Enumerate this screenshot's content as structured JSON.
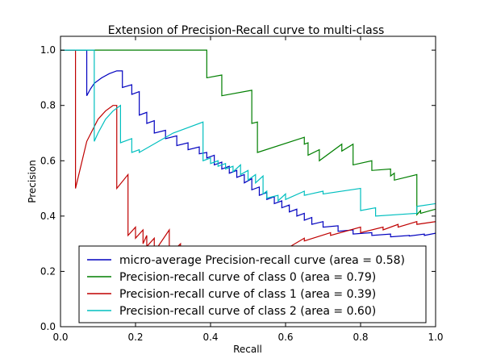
{
  "chart_data": {
    "type": "line",
    "title": "Extension of Precision-Recall curve to multi-class",
    "xlabel": "Recall",
    "ylabel": "Precision",
    "xlim": [
      0.0,
      1.0
    ],
    "ylim": [
      0.0,
      1.05
    ],
    "xticks": [
      "0.0",
      "0.2",
      "0.4",
      "0.6",
      "0.8",
      "1.0"
    ],
    "yticks": [
      "0.0",
      "0.2",
      "0.4",
      "0.6",
      "0.8",
      "1.0"
    ],
    "grid": false,
    "legend_position": "lower-right",
    "series": [
      {
        "name": "micro-average Precision-recall curve (area = 0.58)",
        "color": "#0000bf",
        "x": [
          0.0,
          0.07,
          0.07,
          0.08,
          0.09,
          0.11,
          0.13,
          0.15,
          0.165,
          0.165,
          0.19,
          0.19,
          0.21,
          0.21,
          0.23,
          0.23,
          0.25,
          0.25,
          0.28,
          0.28,
          0.31,
          0.31,
          0.34,
          0.34,
          0.37,
          0.37,
          0.39,
          0.39,
          0.41,
          0.41,
          0.43,
          0.43,
          0.45,
          0.45,
          0.47,
          0.47,
          0.49,
          0.49,
          0.51,
          0.51,
          0.53,
          0.53,
          0.55,
          0.55,
          0.57,
          0.57,
          0.59,
          0.59,
          0.61,
          0.61,
          0.63,
          0.63,
          0.65,
          0.65,
          0.67,
          0.67,
          0.7,
          0.7,
          0.74,
          0.74,
          0.78,
          0.78,
          0.83,
          0.83,
          0.88,
          0.88,
          0.93,
          0.93,
          0.97,
          0.97,
          1.0
        ],
        "y": [
          1.0,
          1.0,
          0.835,
          0.86,
          0.88,
          0.9,
          0.915,
          0.925,
          0.925,
          0.865,
          0.875,
          0.84,
          0.85,
          0.765,
          0.775,
          0.735,
          0.745,
          0.7,
          0.71,
          0.68,
          0.69,
          0.655,
          0.665,
          0.64,
          0.65,
          0.625,
          0.63,
          0.61,
          0.62,
          0.585,
          0.595,
          0.57,
          0.58,
          0.555,
          0.565,
          0.54,
          0.55,
          0.52,
          0.535,
          0.495,
          0.505,
          0.475,
          0.485,
          0.46,
          0.47,
          0.445,
          0.455,
          0.43,
          0.44,
          0.415,
          0.425,
          0.4,
          0.41,
          0.385,
          0.395,
          0.37,
          0.38,
          0.36,
          0.365,
          0.345,
          0.35,
          0.335,
          0.34,
          0.33,
          0.335,
          0.325,
          0.33,
          0.328,
          0.335,
          0.33,
          0.338
        ]
      },
      {
        "name": "Precision-recall curve of class 0 (area = 0.79)",
        "color": "#007f00",
        "x": [
          0.0,
          0.39,
          0.39,
          0.43,
          0.43,
          0.51,
          0.51,
          0.525,
          0.525,
          0.65,
          0.65,
          0.66,
          0.66,
          0.69,
          0.69,
          0.75,
          0.75,
          0.78,
          0.78,
          0.83,
          0.83,
          0.88,
          0.88,
          0.89,
          0.89,
          0.95,
          0.95,
          0.96,
          0.96,
          1.0
        ],
        "y": [
          1.0,
          1.0,
          0.9,
          0.91,
          0.835,
          0.855,
          0.735,
          0.74,
          0.63,
          0.685,
          0.66,
          0.665,
          0.62,
          0.64,
          0.6,
          0.66,
          0.635,
          0.66,
          0.585,
          0.6,
          0.565,
          0.57,
          0.545,
          0.555,
          0.53,
          0.55,
          0.405,
          0.42,
          0.41,
          0.425
        ]
      },
      {
        "name": "Precision-recall curve of class 1 (area = 0.39)",
        "color": "#bf0000",
        "x": [
          0.0,
          0.04,
          0.04,
          0.04,
          0.07,
          0.1,
          0.12,
          0.14,
          0.15,
          0.15,
          0.18,
          0.18,
          0.2,
          0.2,
          0.22,
          0.22,
          0.23,
          0.23,
          0.25,
          0.25,
          0.29,
          0.29,
          0.32,
          0.32,
          0.33,
          0.33,
          0.47,
          0.47,
          0.55,
          0.55,
          0.6,
          0.6,
          0.65,
          0.65,
          0.72,
          0.72,
          0.8,
          0.8,
          0.86,
          0.86,
          0.9,
          0.9,
          0.95,
          0.95,
          1.0
        ],
        "y": [
          1.0,
          1.0,
          0.5,
          0.5,
          0.67,
          0.75,
          0.78,
          0.8,
          0.8,
          0.5,
          0.55,
          0.33,
          0.36,
          0.32,
          0.35,
          0.3,
          0.33,
          0.29,
          0.32,
          0.27,
          0.35,
          0.26,
          0.3,
          0.24,
          0.26,
          0.22,
          0.25,
          0.23,
          0.27,
          0.25,
          0.29,
          0.28,
          0.32,
          0.31,
          0.34,
          0.33,
          0.36,
          0.34,
          0.36,
          0.35,
          0.37,
          0.36,
          0.38,
          0.37,
          0.38
        ]
      },
      {
        "name": "Precision-recall curve of class 2 (area = 0.60)",
        "color": "#00bfbf",
        "x": [
          0.0,
          0.09,
          0.09,
          0.1,
          0.12,
          0.14,
          0.16,
          0.16,
          0.19,
          0.19,
          0.21,
          0.21,
          0.3,
          0.34,
          0.38,
          0.38,
          0.4,
          0.4,
          0.42,
          0.42,
          0.44,
          0.44,
          0.46,
          0.46,
          0.48,
          0.48,
          0.5,
          0.5,
          0.52,
          0.52,
          0.54,
          0.54,
          0.55,
          0.55,
          0.58,
          0.58,
          0.6,
          0.6,
          0.65,
          0.65,
          0.7,
          0.7,
          0.8,
          0.8,
          0.84,
          0.84,
          0.95,
          0.95,
          1.0
        ],
        "y": [
          1.0,
          1.0,
          0.67,
          0.7,
          0.75,
          0.78,
          0.8,
          0.665,
          0.68,
          0.63,
          0.64,
          0.63,
          0.7,
          0.72,
          0.74,
          0.6,
          0.61,
          0.59,
          0.6,
          0.58,
          0.59,
          0.57,
          0.58,
          0.56,
          0.585,
          0.55,
          0.565,
          0.53,
          0.55,
          0.52,
          0.545,
          0.48,
          0.49,
          0.465,
          0.475,
          0.455,
          0.48,
          0.46,
          0.49,
          0.475,
          0.49,
          0.48,
          0.5,
          0.42,
          0.43,
          0.4,
          0.41,
          0.435,
          0.445
        ]
      }
    ]
  }
}
